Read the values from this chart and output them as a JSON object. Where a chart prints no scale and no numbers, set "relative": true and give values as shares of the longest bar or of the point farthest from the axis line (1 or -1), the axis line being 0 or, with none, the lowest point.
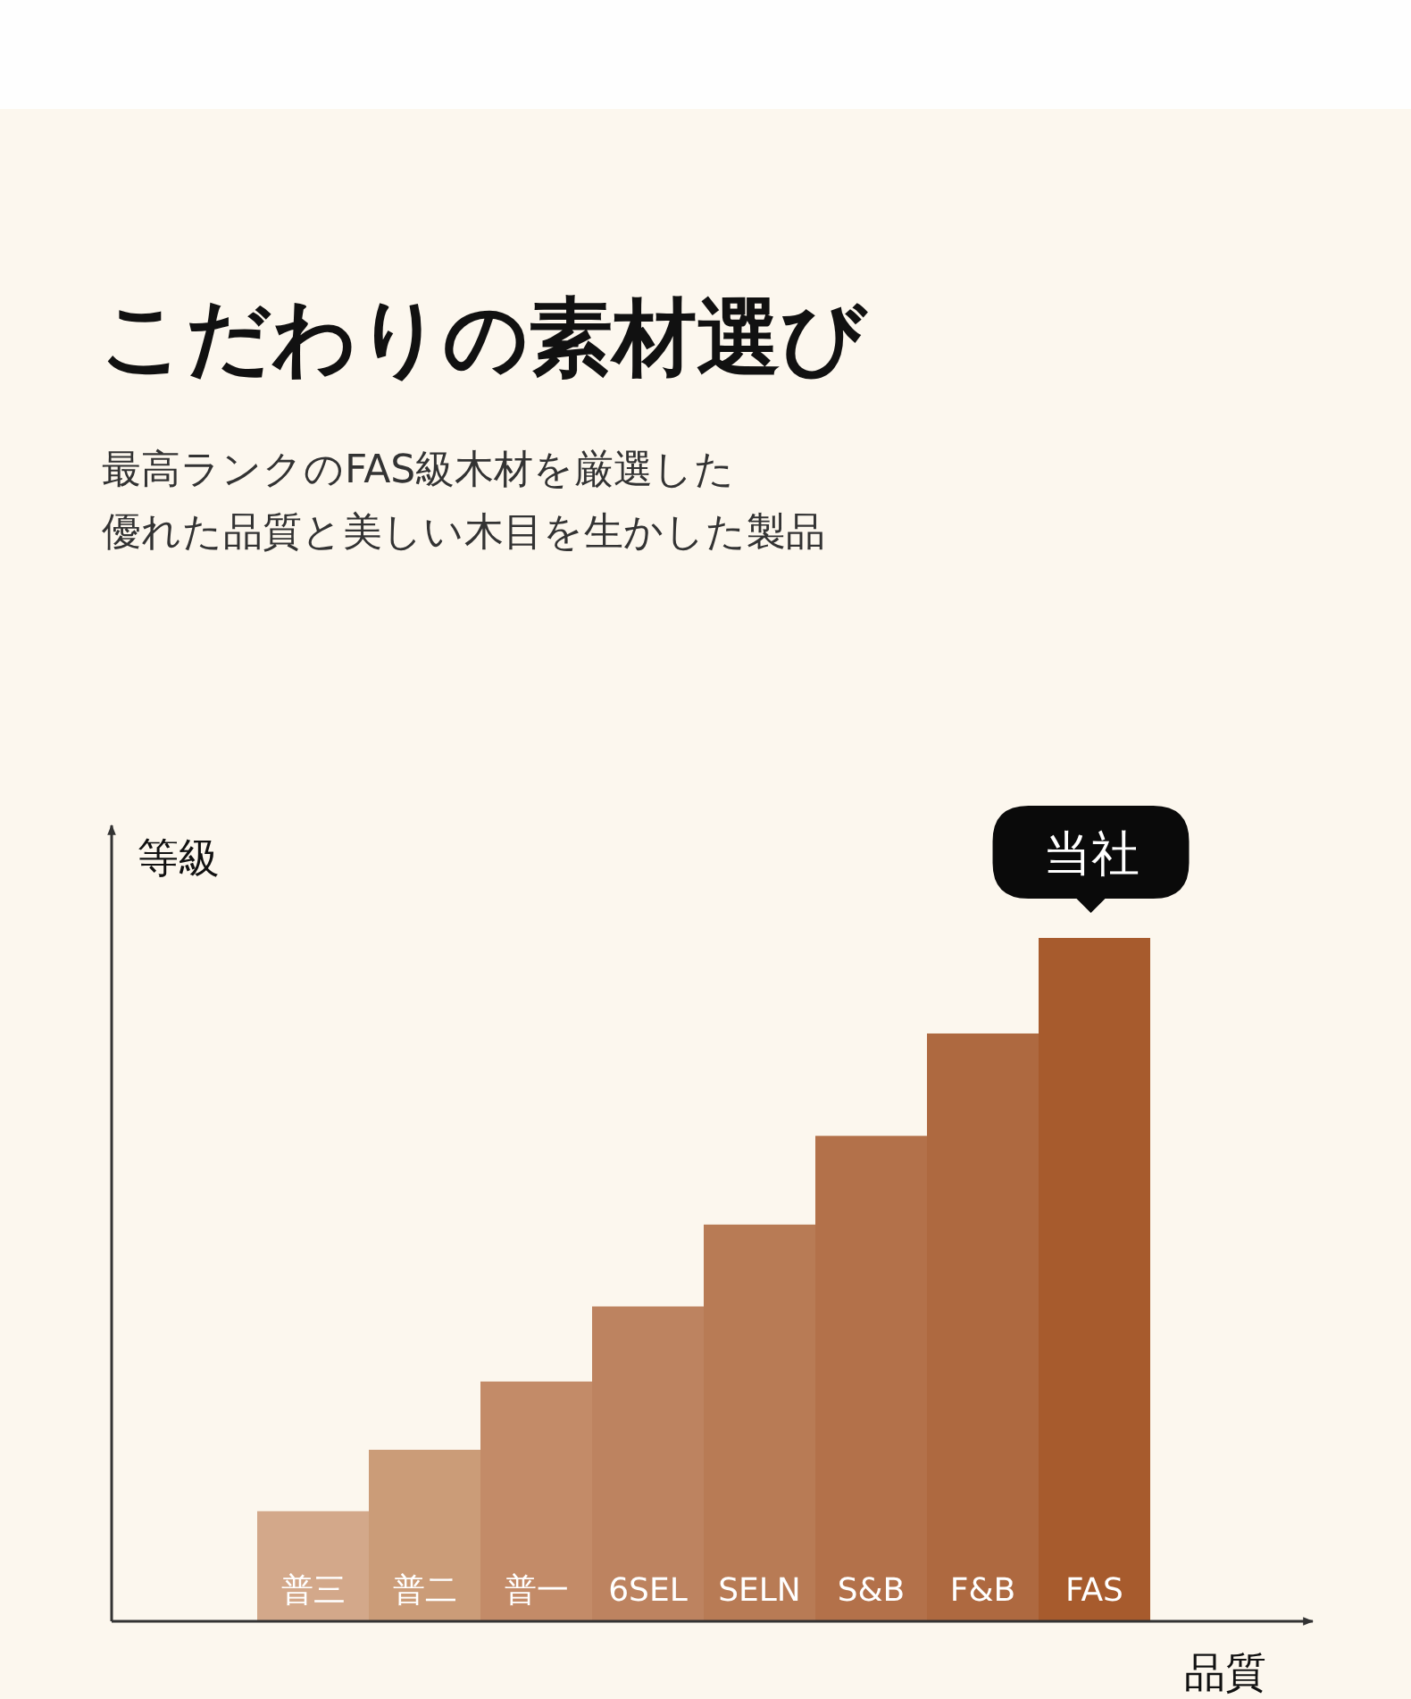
{
  "chart_data": {
    "type": "bar",
    "title": "こだわりの素材選び",
    "subtitle": "最高ランクのFAS級木材を厳選した",
    "xlabel": "品質",
    "ylabel": "等級",
    "categories": [
      "普三",
      "普二",
      "普一",
      "6SEL",
      "SELN",
      "S&B",
      "F&B",
      "FAS"
    ],
    "values": [
      0.16,
      0.25,
      0.35,
      0.46,
      0.58,
      0.71,
      0.86,
      1
    ],
    "colors": [
      "#d3a88a",
      "#cb9c78",
      "#c38b68",
      "#bd8360",
      "#b87b55",
      "#b3714a",
      "#ae6940",
      "#a75b2d"
    ],
    "relative": true,
    "tick_labels": "x",
    "annotations": [
      "優れた品質と美しい木目を生かした製品",
      {
        "text": "当社",
        "x": "FAS",
        "y": 1
      }
    ]
  }
}
